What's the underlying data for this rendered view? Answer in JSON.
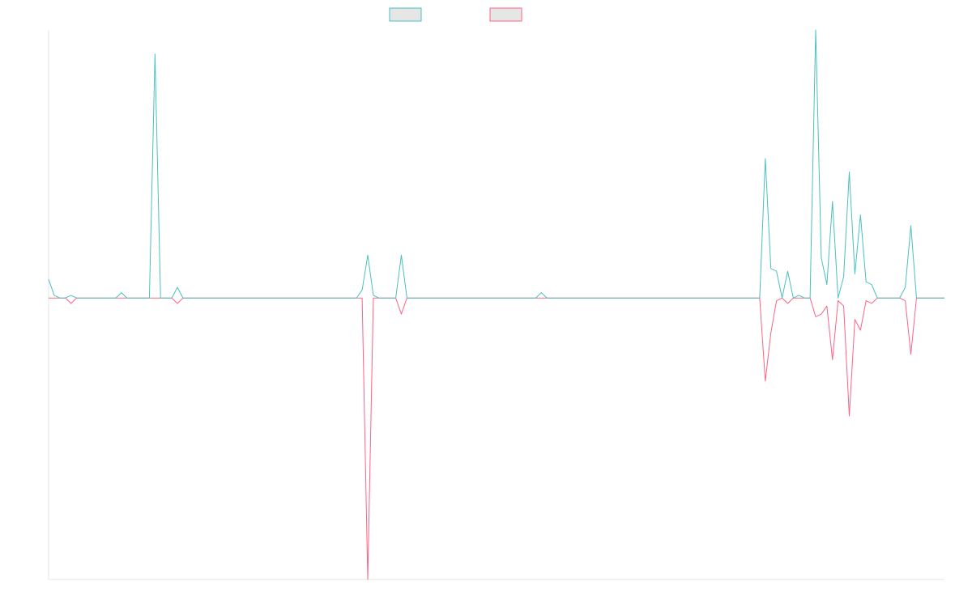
{
  "chart_data": {
    "type": "line",
    "legend": "top",
    "ylim": [
      -105,
      100
    ],
    "series": [
      {
        "color": "#4bc0c0",
        "values": [
          7,
          1,
          0,
          0,
          1,
          0,
          0,
          0,
          0,
          0,
          0,
          0,
          0,
          2,
          0,
          0,
          0,
          0,
          0,
          91,
          0,
          0,
          0,
          4,
          0,
          0,
          0,
          0,
          0,
          0,
          0,
          0,
          0,
          0,
          0,
          0,
          0,
          0,
          0,
          0,
          0,
          0,
          0,
          0,
          0,
          0,
          0,
          0,
          0,
          0,
          0,
          0,
          0,
          0,
          0,
          0,
          3,
          16,
          1,
          0,
          0,
          0,
          0,
          16,
          0,
          0,
          0,
          0,
          0,
          0,
          0,
          0,
          0,
          0,
          0,
          0,
          0,
          0,
          0,
          0,
          0,
          0,
          0,
          0,
          0,
          0,
          0,
          0,
          2,
          0,
          0,
          0,
          0,
          0,
          0,
          0,
          0,
          0,
          0,
          0,
          0,
          0,
          0,
          0,
          0,
          0,
          0,
          0,
          0,
          0,
          0,
          0,
          0,
          0,
          0,
          0,
          0,
          0,
          0,
          0,
          0,
          0,
          0,
          0,
          0,
          0,
          0,
          0,
          52,
          11,
          10,
          0,
          10,
          0,
          1,
          0,
          0,
          100,
          15,
          5,
          36,
          0,
          8,
          47,
          9,
          31,
          6,
          5,
          0,
          0,
          0,
          0,
          0,
          4,
          27,
          0,
          0,
          0,
          0,
          0,
          0
        ]
      },
      {
        "color": "#ff6384",
        "values": [
          0,
          0,
          0,
          0,
          -2,
          0,
          0,
          0,
          0,
          0,
          0,
          0,
          0,
          0,
          0,
          0,
          0,
          0,
          0,
          0,
          0,
          0,
          0,
          -2,
          0,
          0,
          0,
          0,
          0,
          0,
          0,
          0,
          0,
          0,
          0,
          0,
          0,
          0,
          0,
          0,
          0,
          0,
          0,
          0,
          0,
          0,
          0,
          0,
          0,
          0,
          0,
          0,
          0,
          0,
          0,
          0,
          0,
          -105,
          0,
          0,
          0,
          0,
          0,
          -6,
          0,
          0,
          0,
          0,
          0,
          0,
          0,
          0,
          0,
          0,
          0,
          0,
          0,
          0,
          0,
          0,
          0,
          0,
          0,
          0,
          0,
          0,
          0,
          0,
          0,
          0,
          0,
          0,
          0,
          0,
          0,
          0,
          0,
          0,
          0,
          0,
          0,
          0,
          0,
          0,
          0,
          0,
          0,
          0,
          0,
          0,
          0,
          0,
          0,
          0,
          0,
          0,
          0,
          0,
          0,
          0,
          0,
          0,
          0,
          0,
          0,
          0,
          0,
          0,
          -31,
          -13,
          -1,
          0,
          -2,
          0,
          0,
          0,
          0,
          -7,
          -6,
          -3,
          -23,
          -1,
          -3,
          -44,
          -8,
          -12,
          -1,
          -2,
          0,
          0,
          0,
          0,
          0,
          -1,
          -21,
          0,
          0,
          0,
          0,
          0,
          0
        ]
      }
    ]
  }
}
